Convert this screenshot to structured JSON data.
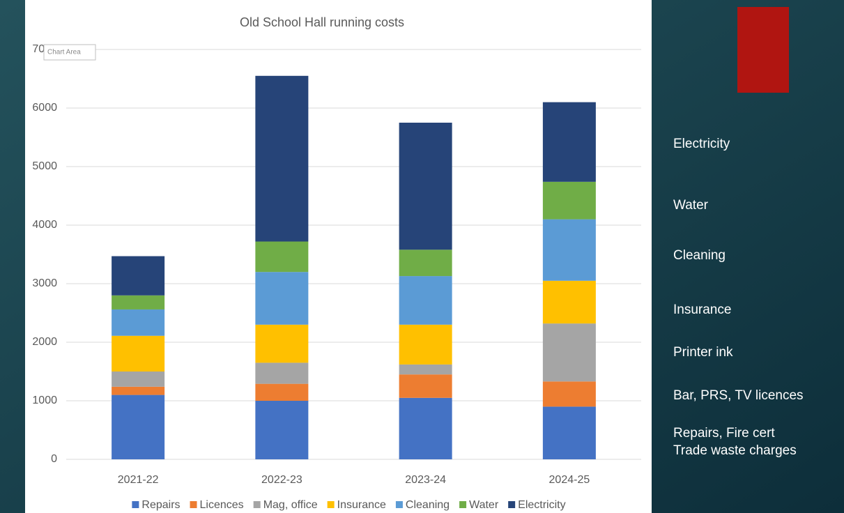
{
  "chart_data": {
    "type": "stacked_bar",
    "title": "Old School Hall running costs",
    "tooltip": "Chart Area",
    "categories": [
      "2021-22",
      "2022-23",
      "2023-24",
      "2024-25"
    ],
    "series": [
      {
        "name": "Repairs",
        "color": "#4472c4",
        "values": [
          1100,
          1000,
          1050,
          900
        ]
      },
      {
        "name": "Licences",
        "color": "#ed7d31",
        "values": [
          140,
          290,
          400,
          430
        ]
      },
      {
        "name": "Mag, office",
        "color": "#a5a5a5",
        "values": [
          260,
          360,
          170,
          990
        ]
      },
      {
        "name": "Insurance",
        "color": "#ffc000",
        "values": [
          610,
          650,
          680,
          730
        ]
      },
      {
        "name": "Cleaning",
        "color": "#5b9bd5",
        "values": [
          450,
          900,
          830,
          1050
        ]
      },
      {
        "name": "Water",
        "color": "#70ad47",
        "values": [
          240,
          520,
          450,
          640
        ]
      },
      {
        "name": "Electricity",
        "color": "#264478",
        "values": [
          670,
          2830,
          2170,
          1360
        ]
      }
    ],
    "ylim": [
      0,
      7000
    ],
    "yticks": [
      0,
      1000,
      2000,
      3000,
      4000,
      5000,
      6000,
      7000
    ],
    "grid": true,
    "legend": "bottom"
  },
  "side_labels": [
    "Electricity",
    "Water",
    "Cleaning",
    "Insurance",
    "Printer ink",
    "Bar, PRS, TV licences",
    "Repairs, Fire cert",
    "Trade waste charges"
  ]
}
